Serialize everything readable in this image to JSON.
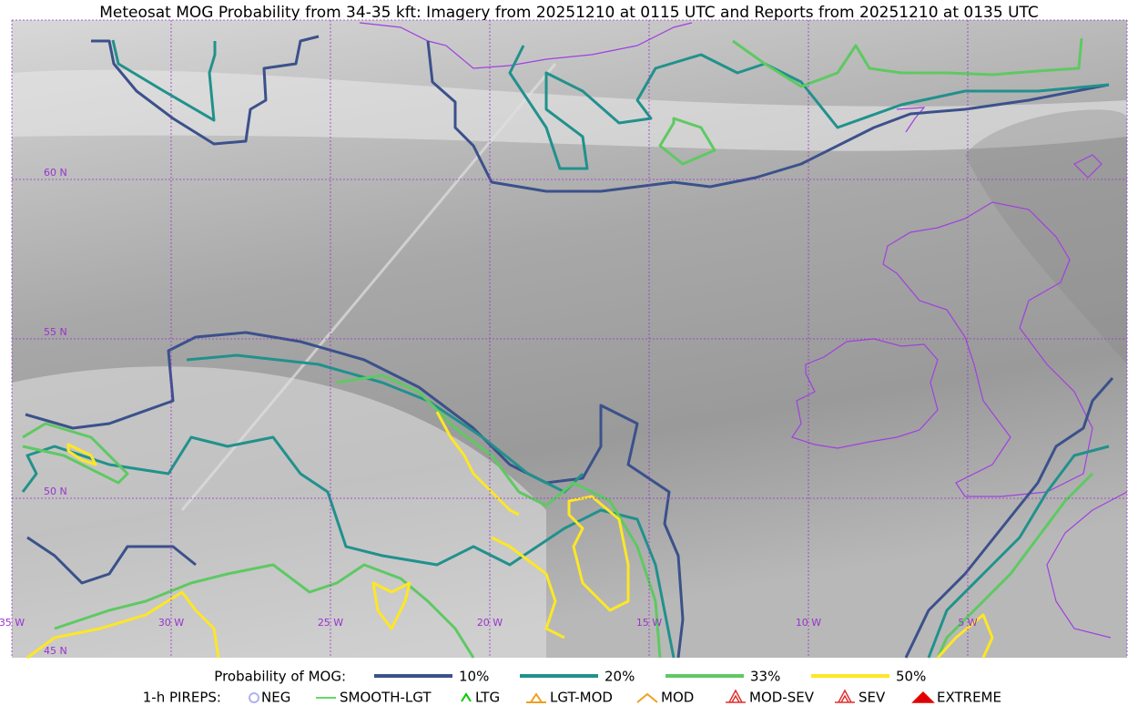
{
  "title": "Meteosat MOG Probability from 34-35 kft: Imagery from 20251210 at 0115 UTC and Reports from 20251210 at 0135 UTC",
  "grid": {
    "color": "#9933cc",
    "lat_labels": [
      "60 N",
      "55 N",
      "50 N",
      "45 N"
    ],
    "lon_labels": [
      "35 W",
      "30 W",
      "25 W",
      "20 W",
      "15 W",
      "10 W",
      "5 W"
    ]
  },
  "legend": {
    "probability": {
      "label": "Probability of MOG:",
      "items": [
        {
          "label": "10%",
          "color": "#3b518b"
        },
        {
          "label": "20%",
          "color": "#21918c"
        },
        {
          "label": "33%",
          "color": "#5ec962"
        },
        {
          "label": "50%",
          "color": "#fde725"
        }
      ]
    },
    "pireps": {
      "label": "1-h PIREPS:",
      "items": [
        {
          "label": "NEG",
          "color": "#b0b0f0"
        },
        {
          "label": "SMOOTH-LGT",
          "color": "#33cc33"
        },
        {
          "label": "LTG",
          "color": "#00cc00"
        },
        {
          "label": "LGT-MOD",
          "color": "#f0a020"
        },
        {
          "label": "MOD",
          "color": "#f0a020"
        },
        {
          "label": "MOD-SEV",
          "color": "#e03030"
        },
        {
          "label": "SEV",
          "color": "#e03030"
        },
        {
          "label": "EXTREME",
          "color": "#e00000"
        }
      ]
    }
  }
}
